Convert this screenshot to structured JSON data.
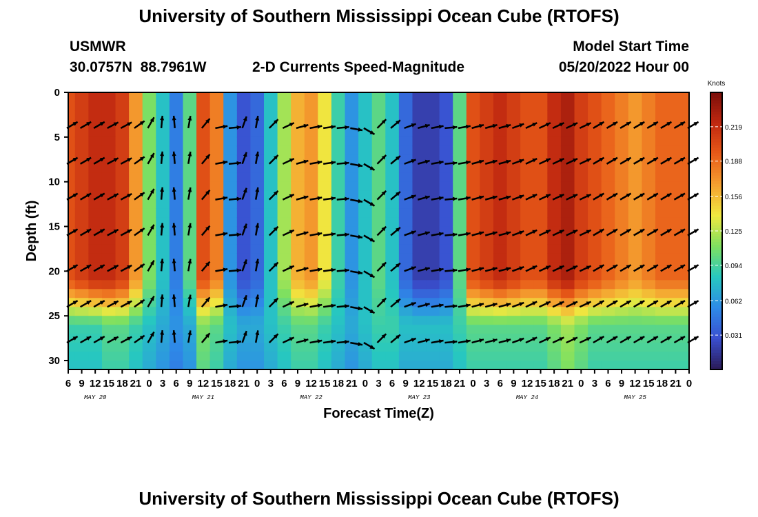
{
  "title": "University of Southern Mississippi Ocean Cube (RTOFS)",
  "title_repeat": "University of Southern Mississippi Ocean Cube (RTOFS)",
  "station": {
    "name": "USMWR",
    "latitude": "30.0757N",
    "longitude": "88.7961W"
  },
  "model_start": {
    "label": "Model Start Time",
    "value": "05/20/2022 Hour 00"
  },
  "chart_data": {
    "type": "heatmap",
    "title": "2-D Currents Speed-Magnitude",
    "xlabel": "Forecast Time(Z)",
    "ylabel": "Depth (ft)",
    "ylim": [
      0,
      31
    ],
    "y_ticks": [
      "0",
      "5",
      "10",
      "15",
      "20",
      "25",
      "30"
    ],
    "x_tick_hours": [
      "6",
      "9",
      "12",
      "15",
      "18",
      "21",
      "0",
      "3",
      "6",
      "9",
      "12",
      "15",
      "18",
      "21",
      "0",
      "3",
      "6",
      "9",
      "12",
      "15",
      "18",
      "21",
      "0",
      "3",
      "6",
      "9",
      "12",
      "15",
      "18",
      "21",
      "0",
      "3",
      "6",
      "9",
      "12",
      "15",
      "18",
      "21",
      "0",
      "3",
      "6",
      "9",
      "12",
      "15",
      "18",
      "21",
      "0"
    ],
    "day_labels": [
      "MAY 20",
      "MAY 21",
      "MAY 22",
      "MAY 23",
      "MAY 24",
      "MAY 25"
    ],
    "colorbar": {
      "label": "Knots",
      "ticks": [
        "0.219",
        "0.188",
        "0.156",
        "0.125",
        "0.094",
        "0.062",
        "0.031"
      ],
      "range": [
        0,
        0.25
      ],
      "colors": [
        "#2a1a55",
        "#3a4fd0",
        "#2e8ae8",
        "#27c8c0",
        "#7fe060",
        "#f0e840",
        "#f5a030",
        "#e85a18",
        "#c02810",
        "#7a0e0a"
      ]
    },
    "surface_speed_by_time_knots": [
      0.2,
      0.21,
      0.22,
      0.22,
      0.21,
      0.17,
      0.11,
      0.08,
      0.05,
      0.1,
      0.2,
      0.18,
      0.06,
      0.03,
      0.04,
      0.08,
      0.12,
      0.16,
      0.17,
      0.14,
      0.09,
      0.06,
      0.08,
      0.1,
      0.08,
      0.04,
      0.02,
      0.02,
      0.03,
      0.1,
      0.2,
      0.21,
      0.22,
      0.21,
      0.2,
      0.2,
      0.22,
      0.23,
      0.21,
      0.2,
      0.19,
      0.18,
      0.17,
      0.18,
      0.19,
      0.19,
      0.19
    ],
    "deep_speed_by_time_knots": [
      0.09,
      0.09,
      0.09,
      0.1,
      0.1,
      0.09,
      0.08,
      0.07,
      0.06,
      0.07,
      0.11,
      0.1,
      0.08,
      0.07,
      0.07,
      0.08,
      0.09,
      0.1,
      0.1,
      0.09,
      0.08,
      0.07,
      0.08,
      0.09,
      0.09,
      0.08,
      0.08,
      0.08,
      0.08,
      0.09,
      0.1,
      0.1,
      0.1,
      0.1,
      0.1,
      0.1,
      0.11,
      0.12,
      0.11,
      0.1,
      0.1,
      0.1,
      0.1,
      0.1,
      0.1,
      0.1,
      0.1
    ],
    "vector_depths_ft": [
      4,
      8,
      12,
      16,
      20,
      24,
      28
    ],
    "vector_direction_deg_by_time": [
      30,
      30,
      30,
      28,
      28,
      35,
      60,
      85,
      95,
      80,
      50,
      10,
      5,
      70,
      80,
      45,
      25,
      15,
      10,
      8,
      5,
      -10,
      -30,
      45,
      40,
      20,
      15,
      10,
      5,
      10,
      15,
      15,
      15,
      20,
      25,
      25,
      25,
      25,
      25,
      30,
      30,
      30,
      30,
      30,
      30,
      30,
      30
    ]
  }
}
